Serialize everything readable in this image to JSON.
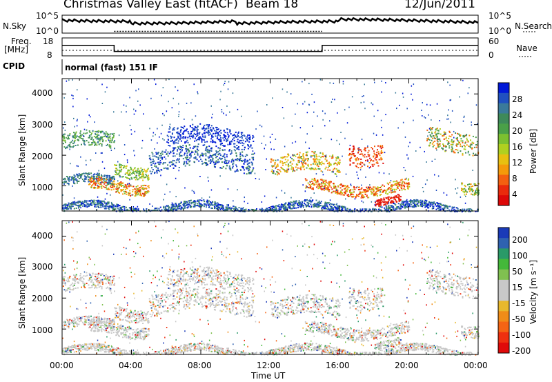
{
  "header": {
    "station": "Christmas Valley East (fitACF)",
    "beam": "Beam 18",
    "date": "12/Jun/2011"
  },
  "panels": {
    "nsky_label": "N.Sky",
    "nsearch_label": "N.Search",
    "nsky_ticks": [
      "10^5",
      "10^0"
    ],
    "nsearch_ticks": [
      "10^5",
      "10^0"
    ],
    "freq_label": "Freq.",
    "freq_unit": "[MHz]",
    "freq_ticks": [
      "18",
      "8"
    ],
    "nave_label": "Nave",
    "nave_ticks": [
      "60",
      "0"
    ],
    "cpid_label": "CPID",
    "cpid_value": "normal (fast) 151 IF"
  },
  "chart_data": [
    {
      "type": "line",
      "name": "sky-noise",
      "x": [
        "00:00",
        "03:00",
        "03:00",
        "15:00",
        "15:00",
        "24:00"
      ],
      "freq_mhz": [
        14,
        14,
        10,
        10,
        14,
        14
      ],
      "ylim_freq": [
        8,
        18
      ]
    },
    {
      "type": "heatmap",
      "name": "power-panel",
      "ylabel": "Slant Range [km]",
      "ylim": [
        180,
        4500
      ],
      "y_ticks": [
        1000,
        2000,
        3000,
        4000
      ],
      "colorbar_label": "Power [dB]",
      "colorbar_ticks": [
        "28",
        "24",
        "20",
        "16",
        "12",
        "8",
        "4"
      ],
      "colorbar_colors": [
        "#0018d8",
        "#2050c0",
        "#3a7a9a",
        "#3e8a5a",
        "#4aa048",
        "#7cc030",
        "#b0d020",
        "#e8c010",
        "#f59a0a",
        "#f46010",
        "#ea2a0c",
        "#dd0808"
      ]
    },
    {
      "type": "heatmap",
      "name": "velocity-panel",
      "ylabel": "Slant Range [km]",
      "ylim": [
        180,
        4500
      ],
      "y_ticks": [
        1000,
        2000,
        3000,
        4000
      ],
      "colorbar_label": "Velocity [m s⁻¹]",
      "colorbar_ticks": [
        "200",
        "100",
        "50",
        "15",
        "-15",
        "-50",
        "-100",
        "-200"
      ],
      "colorbar_colors": [
        "#1a3ab8",
        "#2f62b0",
        "#2a9a68",
        "#44b83a",
        "#80c050",
        "#c8c8c8",
        "#c8c8c8",
        "#e8b82c",
        "#f08c18",
        "#f46414",
        "#ee3010",
        "#e00a0a"
      ]
    }
  ],
  "time_axis": {
    "ticks": [
      "00:00",
      "04:00",
      "08:00",
      "12:00",
      "16:00",
      "20:00",
      "00:00"
    ],
    "label": "Time UT"
  }
}
